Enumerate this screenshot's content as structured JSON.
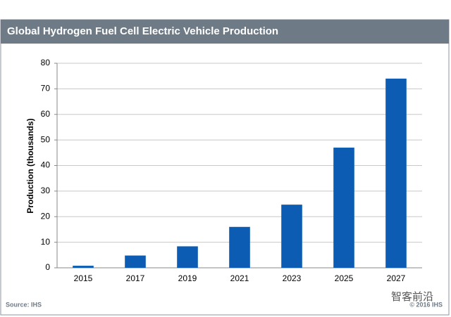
{
  "chart_data": {
    "type": "bar",
    "title": "Global Hydrogen Fuel Cell Electric Vehicle Production",
    "y_label": "Production (thousands)",
    "categories": [
      "2015",
      "2017",
      "2019",
      "2021",
      "2023",
      "2025",
      "2027"
    ],
    "values": [
      0.8,
      4.8,
      8.4,
      16,
      24.7,
      47,
      74
    ],
    "color": "#0b5cb2",
    "ylim": [
      0,
      80
    ],
    "yticks": [
      0,
      10,
      20,
      30,
      40,
      50,
      60,
      70,
      80
    ],
    "grid": true,
    "source": "Source: IHS",
    "copyright": "© 2016 IHS",
    "watermark": "智客前沿"
  }
}
